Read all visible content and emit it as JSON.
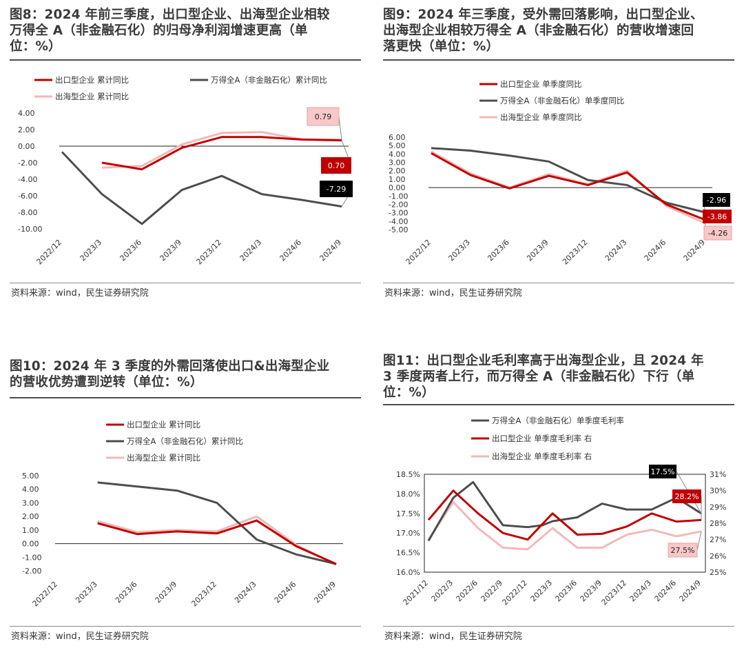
{
  "panels": [
    {
      "id": "fig8",
      "title_lines": [
        "图8：2024 年前三季度，出口型企业、出海型企业相较",
        "万得全 A（非金融石化）的归母净利润增速更高（单",
        "位：%）"
      ],
      "source": "资料来源：wind，民生证券研究院"
    },
    {
      "id": "fig9",
      "title_lines": [
        "图9：2024 年三季度，受外需回落影响，出口型企业、",
        "出海型企业相较万得全 A（非金融石化）的营收增速回",
        "落更快（单位：%）"
      ],
      "source": "资料来源：wind，民生证券研究院"
    },
    {
      "id": "fig10",
      "title_lines": [
        "图10：2024 年 3 季度的外需回落使出口&出海型企业",
        "的营收优势遭到逆转（单位：%）"
      ],
      "source": "资料来源：wind，民生证券研究院"
    },
    {
      "id": "fig11",
      "title_lines": [
        "图11：出口型企业毛利率高于出海型企业，且 2024 年",
        "3 季度两者上行，而万得全 A（非金融石化）下行（单",
        "位：%）"
      ],
      "source": "资料来源：wind，民生证券研究院"
    }
  ],
  "colors": {
    "red": "#c00000",
    "dark": "#4d4d4d",
    "pink": "#f2b8b8",
    "black": "#000000"
  },
  "chart_data": [
    {
      "type": "line",
      "title": "图8：2024 年前三季度，出口型企业、出海型企业相较万得全 A（非金融石化）的归母净利润增速更高（单位：%）",
      "categories": [
        "2022/12",
        "2023/3",
        "2023/6",
        "2023/9",
        "2023/12",
        "2024/3",
        "2024/6",
        "2024/9"
      ],
      "yticks": [
        "4.00",
        "2.00",
        "0.00",
        "-2.00",
        "-4.00",
        "-6.00",
        "-8.00",
        "-10.00"
      ],
      "ylim": [
        -10,
        4
      ],
      "series": [
        {
          "name": "出口型企业 累计同比",
          "color": "red",
          "values": [
            null,
            -2.0,
            -2.8,
            -0.2,
            1.1,
            1.1,
            0.8,
            0.7
          ]
        },
        {
          "name": "万得全A（非金融石化）累计同比",
          "color": "dark",
          "values": [
            -0.7,
            -5.8,
            -9.4,
            -5.3,
            -3.6,
            -5.8,
            -6.5,
            -7.29
          ]
        },
        {
          "name": "出海型企业 累计同比",
          "color": "pink",
          "values": [
            null,
            -2.6,
            -2.4,
            0.2,
            1.6,
            1.7,
            0.8,
            0.79
          ]
        }
      ],
      "data_labels": [
        {
          "text": "0.79",
          "series": 2,
          "style": "pink"
        },
        {
          "text": "0.70",
          "series": 0,
          "style": "red"
        },
        {
          "text": "-7.29",
          "series": 1,
          "style": "black"
        }
      ]
    },
    {
      "type": "line",
      "title": "图9：2024 年三季度，受外需回落影响，出口型企业、出海型企业相较万得全 A（非金融石化）的营收增速回落更快（单位：%）",
      "categories": [
        "2022/12",
        "2023/3",
        "2023/6",
        "2023/9",
        "2023/12",
        "2024/3",
        "2024/6",
        "2024/9"
      ],
      "yticks": [
        "6.00",
        "5.00",
        "4.00",
        "3.00",
        "2.00",
        "1.00",
        "0.00",
        "-1.00",
        "-2.00",
        "-3.00",
        "-4.00",
        "-5.00"
      ],
      "ylim": [
        -5,
        6
      ],
      "series": [
        {
          "name": "出口型企业 单季度同比",
          "color": "red",
          "values": [
            4.1,
            1.5,
            -0.1,
            1.4,
            0.3,
            1.8,
            -2.0,
            -3.86
          ]
        },
        {
          "name": "万得全A（非金融石化）单季度同比",
          "color": "dark",
          "values": [
            4.7,
            4.4,
            3.8,
            3.1,
            0.9,
            0.3,
            -1.8,
            -2.96
          ]
        },
        {
          "name": "出海型企业 单季度同比",
          "color": "pink",
          "values": [
            4.3,
            1.7,
            0.0,
            1.6,
            0.4,
            2.0,
            -2.2,
            -4.26
          ]
        }
      ],
      "data_labels": [
        {
          "text": "-2.96",
          "series": 1,
          "style": "black"
        },
        {
          "text": "-3.86",
          "series": 0,
          "style": "red"
        },
        {
          "text": "-4.26",
          "series": 2,
          "style": "pink"
        }
      ]
    },
    {
      "type": "line",
      "title": "图10：2024 年 3 季度的外需回落使出口&出海型企业的营收优势遭到逆转（单位：%）",
      "categories": [
        "2022/12",
        "2023/3",
        "2023/6",
        "2023/9",
        "2023/12",
        "2024/3",
        "2024/6",
        "2024/9"
      ],
      "yticks": [
        "5.00",
        "4.00",
        "3.00",
        "2.00",
        "1.00",
        "0.00",
        "-1.00",
        "-2.00"
      ],
      "ylim": [
        -2,
        5
      ],
      "series": [
        {
          "name": "出口型企业 累计同比",
          "color": "red",
          "values": [
            null,
            1.5,
            0.7,
            0.9,
            0.75,
            1.7,
            -0.2,
            -1.5
          ]
        },
        {
          "name": "万得全A（非金融石化）累计同比",
          "color": "dark",
          "values": [
            null,
            4.5,
            4.2,
            3.9,
            3.0,
            0.3,
            -0.8,
            -1.5
          ]
        },
        {
          "name": "出海型企业 累计同比",
          "color": "pink",
          "values": [
            null,
            1.65,
            0.85,
            1.0,
            0.9,
            2.0,
            -0.1,
            -1.55
          ]
        }
      ],
      "data_labels": []
    },
    {
      "type": "line",
      "title": "图11：出口型企业毛利率高于出海型企业，且 2024 年 3 季度两者上行，而万得全 A（非金融石化）下行（单位：%）",
      "categories": [
        "2021/12",
        "2022/3",
        "2022/6",
        "2022/9",
        "2022/12",
        "2023/3",
        "2023/6",
        "2023/9",
        "2023/12",
        "2024/3",
        "2024/6",
        "2024/9"
      ],
      "yticks_left": [
        "18.5%",
        "18.0%",
        "17.5%",
        "17.0%",
        "16.5%",
        "16.0%"
      ],
      "yticks_right": [
        "31%",
        "30%",
        "29%",
        "28%",
        "27%",
        "26%",
        "25%"
      ],
      "ylim_left": [
        16.0,
        18.5
      ],
      "ylim_right": [
        25,
        31
      ],
      "series": [
        {
          "name": "万得全A（非金融石化）单季度毛利率",
          "color": "dark",
          "axis": "left",
          "x": [
            0,
            1,
            1.8,
            3,
            4,
            4.6,
            5,
            6,
            7,
            8,
            9,
            10,
            11
          ],
          "values": [
            16.8,
            17.9,
            18.3,
            17.2,
            17.15,
            17.2,
            17.3,
            17.4,
            17.75,
            17.6,
            17.6,
            17.9,
            17.5
          ]
        },
        {
          "name": "出口型企业 单季度毛利率 右",
          "color": "red",
          "axis": "right",
          "x": [
            0,
            1,
            2,
            3,
            4,
            5,
            6,
            7,
            8,
            9,
            10,
            11
          ],
          "values": [
            28.2,
            30.0,
            28.6,
            27.4,
            27.0,
            28.6,
            27.3,
            27.35,
            27.8,
            28.6,
            28.1,
            28.2
          ]
        },
        {
          "name": "出海型企业 单季度毛利率 右",
          "color": "pink",
          "axis": "right",
          "x": [
            0,
            1,
            2,
            3,
            4,
            5,
            6,
            7,
            8,
            9,
            10,
            11
          ],
          "values": [
            27.0,
            29.3,
            27.7,
            26.5,
            26.4,
            27.7,
            26.5,
            26.5,
            27.3,
            27.6,
            27.2,
            27.5
          ]
        }
      ],
      "data_labels": [
        {
          "text": "17.5%",
          "series": 0,
          "style": "black"
        },
        {
          "text": "28.2%",
          "series": 1,
          "style": "red"
        },
        {
          "text": "27.5%",
          "series": 2,
          "style": "pink"
        }
      ]
    }
  ]
}
